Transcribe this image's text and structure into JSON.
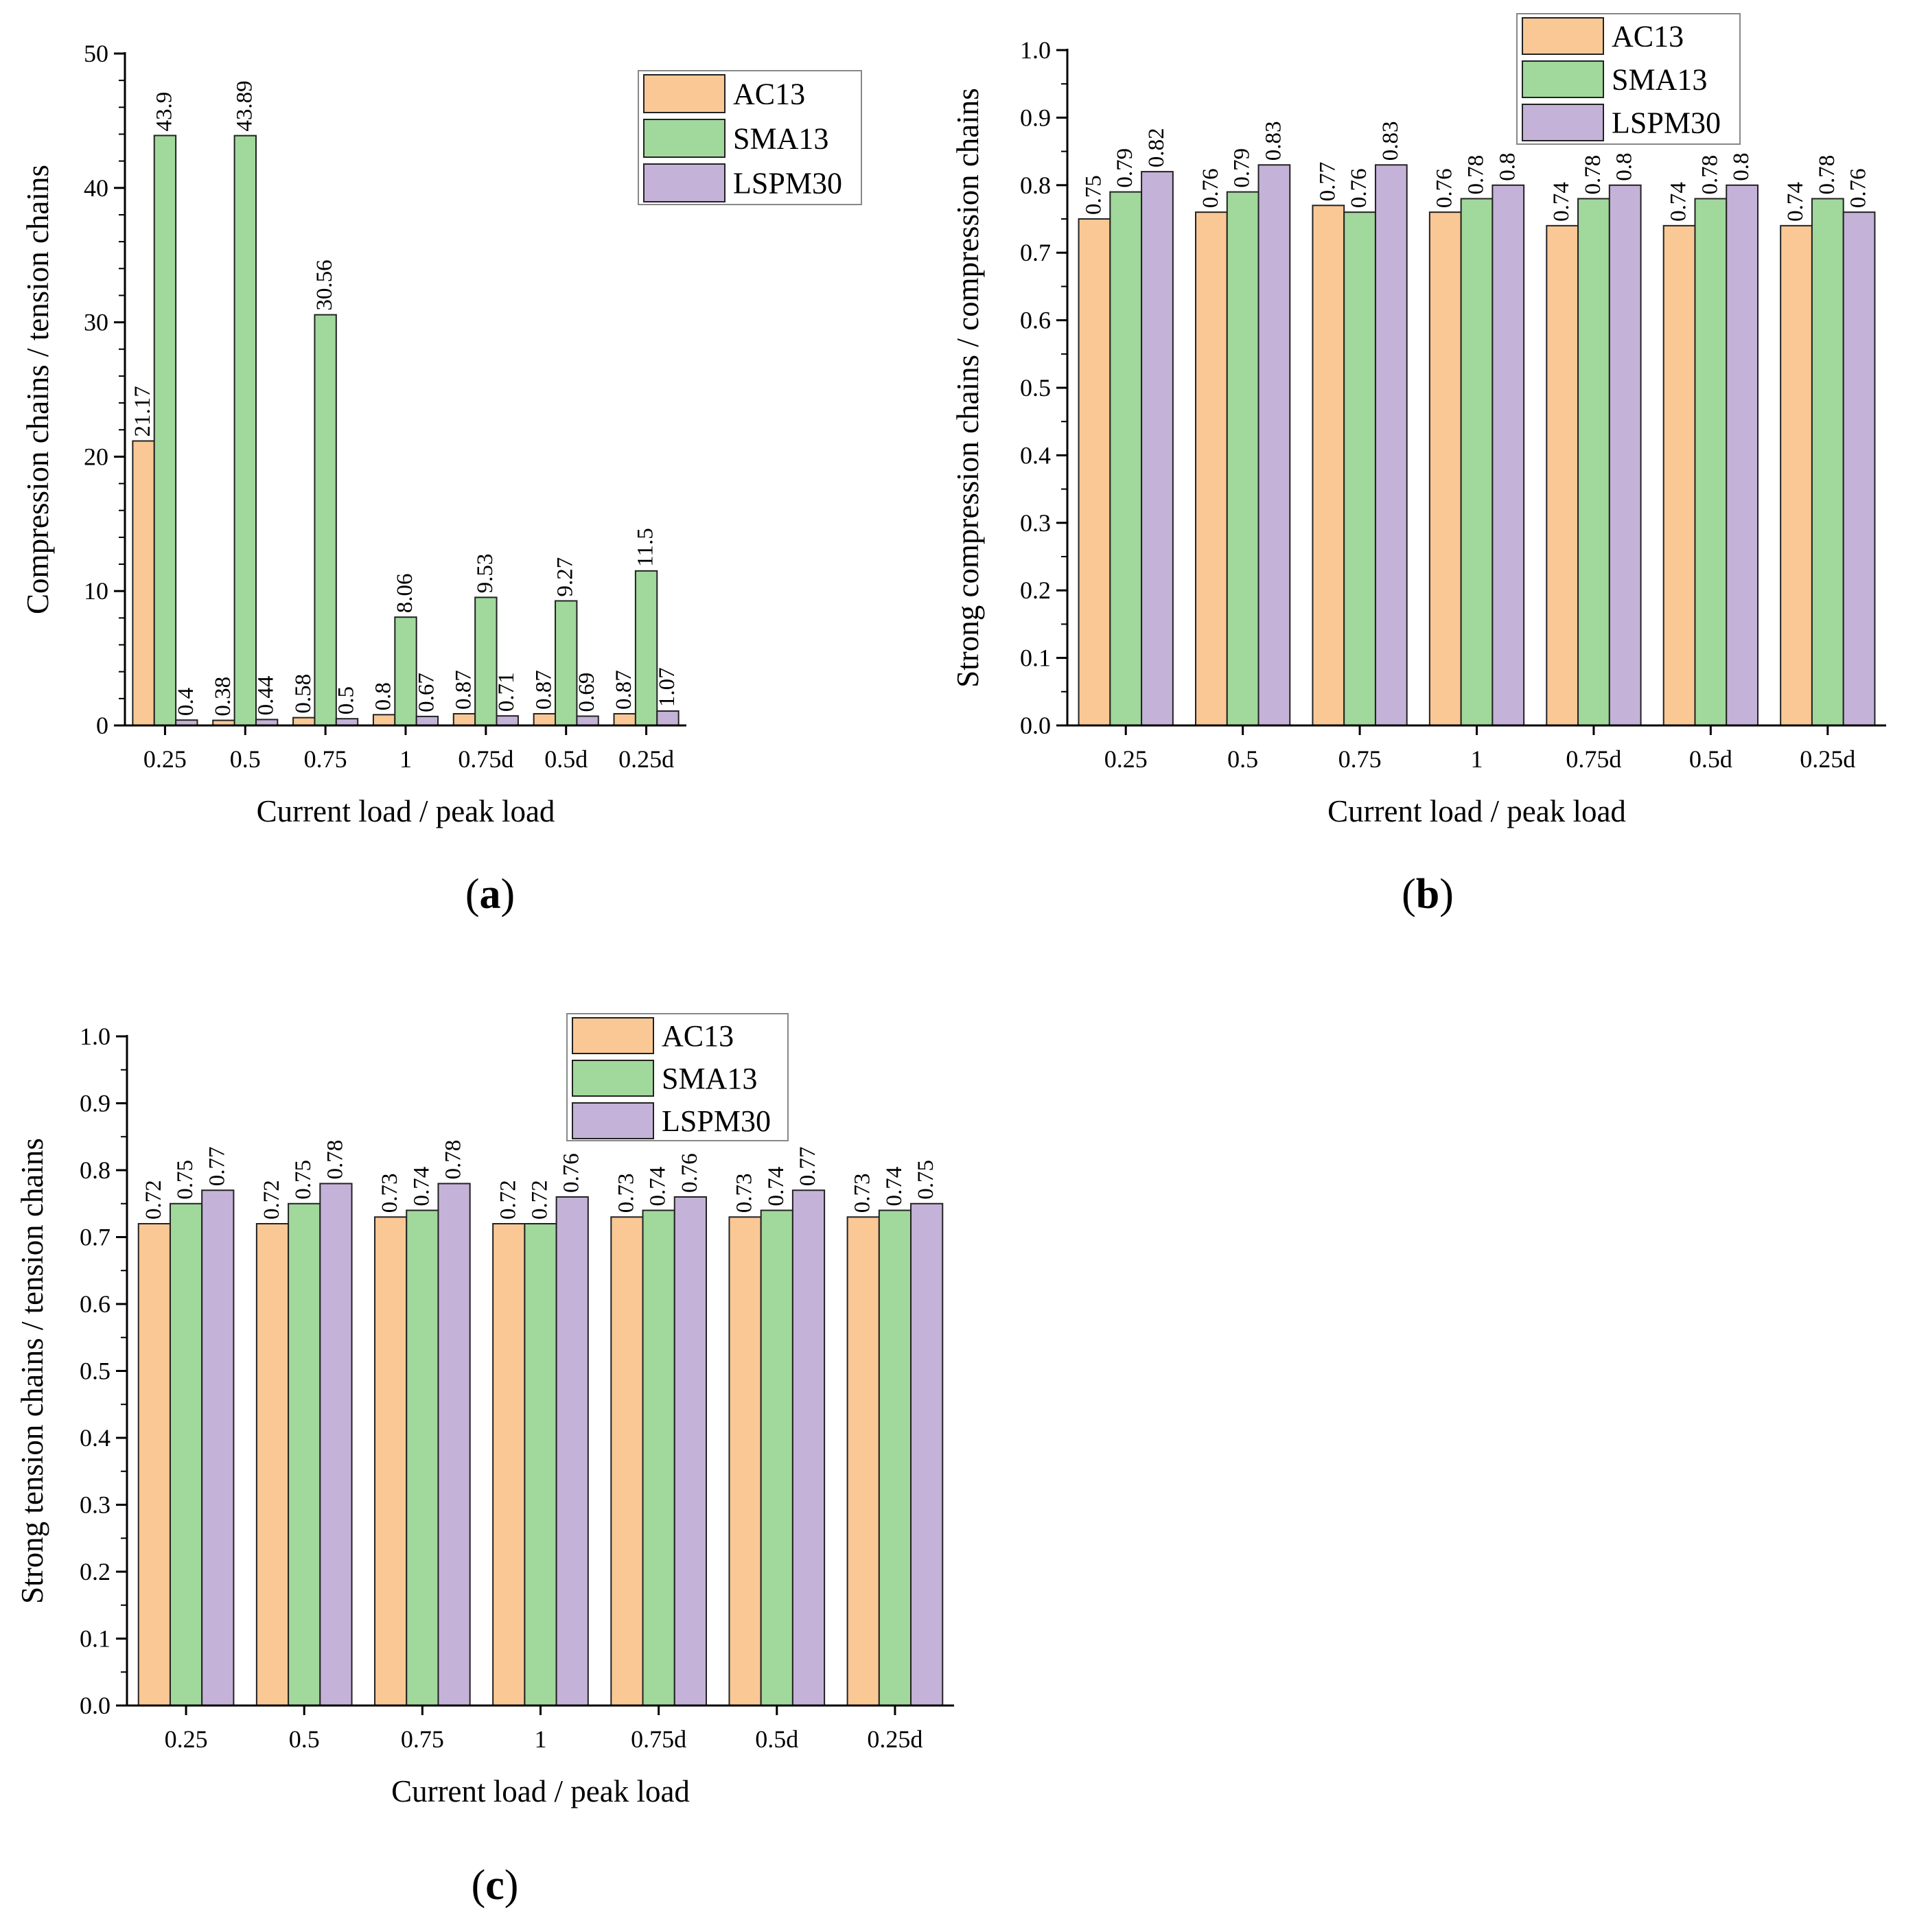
{
  "figure": {
    "panel_labels": [
      "a",
      "b",
      "c"
    ]
  },
  "series_colors": {
    "AC13": "#F9C895",
    "SMA13": "#A1D89C",
    "LSPM30": "#C5B2D8",
    "edge": "#222222"
  },
  "chart_data": [
    {
      "id": "a",
      "type": "bar",
      "title": "",
      "xlabel": "Current load / peak load",
      "ylabel": "Compression chains / tension chains",
      "categories": [
        "0.25",
        "0.5",
        "0.75",
        "1",
        "0.75d",
        "0.5d",
        "0.25d"
      ],
      "ylim": [
        0,
        50
      ],
      "yticks": [
        "0",
        "10",
        "20",
        "30",
        "40",
        "50"
      ],
      "minor_step": 2,
      "grid": false,
      "legend_position": "top-right",
      "series": [
        {
          "name": "AC13",
          "values": [
            21.17,
            0.38,
            0.58,
            0.8,
            0.87,
            0.87,
            0.87
          ],
          "labels": [
            "21.17",
            "0.38",
            "0.58",
            "0.8",
            "0.87",
            "0.87",
            "0.87"
          ]
        },
        {
          "name": "SMA13",
          "values": [
            43.9,
            43.89,
            30.56,
            8.06,
            9.53,
            9.27,
            11.5
          ],
          "labels": [
            "43.9",
            "43.89",
            "30.56",
            "8.06",
            "9.53",
            "9.27",
            "11.5"
          ]
        },
        {
          "name": "LSPM30",
          "values": [
            0.4,
            0.44,
            0.5,
            0.67,
            0.71,
            0.69,
            1.07
          ],
          "labels": [
            "0.4",
            "0.44",
            "0.5",
            "0.67",
            "0.71",
            "0.69",
            "1.07"
          ]
        }
      ]
    },
    {
      "id": "b",
      "type": "bar",
      "title": "",
      "xlabel": "Current load / peak load",
      "ylabel": "Strong compression chains / compression chains",
      "categories": [
        "0.25",
        "0.5",
        "0.75",
        "1",
        "0.75d",
        "0.5d",
        "0.25d"
      ],
      "ylim": [
        0,
        1.0
      ],
      "yticks": [
        "0.0",
        "0.1",
        "0.2",
        "0.3",
        "0.4",
        "0.5",
        "0.6",
        "0.7",
        "0.8",
        "0.9",
        "1.0"
      ],
      "minor_step": 0.05,
      "grid": false,
      "legend_position": "top-right",
      "series": [
        {
          "name": "AC13",
          "values": [
            0.75,
            0.76,
            0.77,
            0.76,
            0.74,
            0.74,
            0.74
          ],
          "labels": [
            "0.75",
            "0.76",
            "0.77",
            "0.76",
            "0.74",
            "0.74",
            "0.74"
          ]
        },
        {
          "name": "SMA13",
          "values": [
            0.79,
            0.79,
            0.76,
            0.78,
            0.78,
            0.78,
            0.78
          ],
          "labels": [
            "0.79",
            "0.79",
            "0.76",
            "0.78",
            "0.78",
            "0.78",
            "0.78"
          ]
        },
        {
          "name": "LSPM30",
          "values": [
            0.82,
            0.83,
            0.83,
            0.8,
            0.8,
            0.8,
            0.76
          ],
          "labels": [
            "0.82",
            "0.83",
            "0.83",
            "0.8",
            "0.8",
            "0.8",
            "0.76"
          ]
        }
      ]
    },
    {
      "id": "c",
      "type": "bar",
      "title": "",
      "xlabel": "Current load / peak load",
      "ylabel": "Strong tension chains / tension chains",
      "categories": [
        "0.25",
        "0.5",
        "0.75",
        "1",
        "0.75d",
        "0.5d",
        "0.25d"
      ],
      "ylim": [
        0,
        1.0
      ],
      "yticks": [
        "0.0",
        "0.1",
        "0.2",
        "0.3",
        "0.4",
        "0.5",
        "0.6",
        "0.7",
        "0.8",
        "0.9",
        "1.0"
      ],
      "minor_step": 0.05,
      "grid": false,
      "legend_position": "top-center",
      "series": [
        {
          "name": "AC13",
          "values": [
            0.72,
            0.72,
            0.73,
            0.72,
            0.73,
            0.73,
            0.73
          ],
          "labels": [
            "0.72",
            "0.72",
            "0.73",
            "0.72",
            "0.73",
            "0.73",
            "0.73"
          ]
        },
        {
          "name": "SMA13",
          "values": [
            0.75,
            0.75,
            0.74,
            0.72,
            0.74,
            0.74,
            0.74
          ],
          "labels": [
            "0.75",
            "0.75",
            "0.74",
            "0.72",
            "0.74",
            "0.74",
            "0.74"
          ]
        },
        {
          "name": "LSPM30",
          "values": [
            0.77,
            0.78,
            0.78,
            0.76,
            0.76,
            0.77,
            0.75
          ],
          "labels": [
            "0.77",
            "0.78",
            "0.78",
            "0.76",
            "0.76",
            "0.77",
            "0.75"
          ]
        }
      ]
    }
  ]
}
